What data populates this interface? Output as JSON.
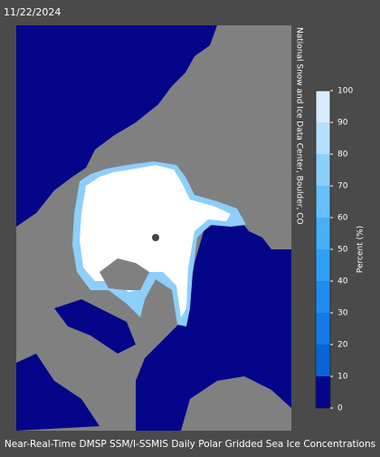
{
  "header": {
    "date": "11/22/2024"
  },
  "map": {
    "credit": "National Snow and Ice Data Center, Boulder, CO"
  },
  "colorbar": {
    "label": "Percent (%)",
    "ticks": [
      0,
      10,
      20,
      30,
      40,
      50,
      60,
      70,
      80,
      90,
      100
    ],
    "colors": [
      "#05058a",
      "#0a64d8",
      "#1478e6",
      "#208cf0",
      "#2f9ff6",
      "#46b0f8",
      "#66c0fa",
      "#8ccffb",
      "#b4dffc",
      "#d6ecfd"
    ],
    "top_color": "#ffffff"
  },
  "footer": {
    "caption": "Near-Real-Time DMSP SSM/I-SSMIS Daily Polar Gridded Sea Ice Concentrations"
  }
}
